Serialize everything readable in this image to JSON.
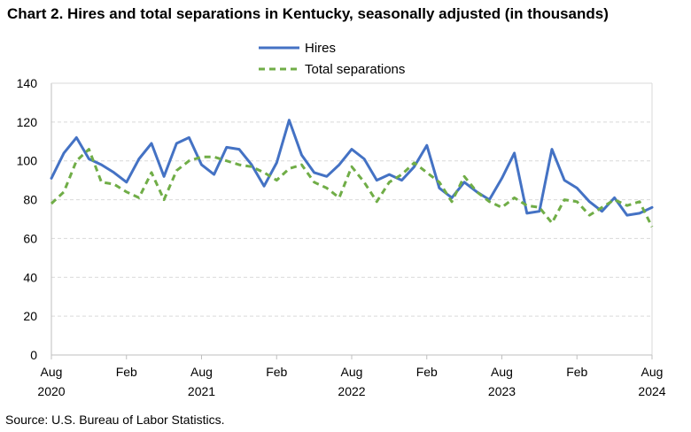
{
  "title": "Chart 2. Hires and total separations in Kentucky, seasonally adjusted (in thousands)",
  "source": "Source: U.S. Bureau of Labor Statistics.",
  "colors": {
    "hires": "#4472C4",
    "separations": "#70AD47",
    "grid": "#d9d9d9"
  },
  "chart_data": {
    "type": "line",
    "title": "Chart 2. Hires and total separations in Kentucky, seasonally adjusted (in thousands)",
    "xlabel": "",
    "ylabel": "",
    "ylim": [
      0,
      140
    ],
    "yticks": [
      0,
      20,
      40,
      60,
      80,
      100,
      120,
      140
    ],
    "grid": true,
    "legend_position": "top-center",
    "x_start": "2020-08",
    "x_end": "2024-08",
    "x_ticks": [
      {
        "month": "Aug",
        "year": "2020",
        "index": 0
      },
      {
        "month": "Feb",
        "year": "",
        "index": 6
      },
      {
        "month": "Aug",
        "year": "2021",
        "index": 12
      },
      {
        "month": "Feb",
        "year": "",
        "index": 18
      },
      {
        "month": "Aug",
        "year": "2022",
        "index": 24
      },
      {
        "month": "Feb",
        "year": "",
        "index": 30
      },
      {
        "month": "Aug",
        "year": "2023",
        "index": 36
      },
      {
        "month": "Feb",
        "year": "",
        "index": 42
      },
      {
        "month": "Aug",
        "year": "2024",
        "index": 48
      }
    ],
    "series": [
      {
        "name": "Hires",
        "style": "solid",
        "values": [
          91,
          104,
          112,
          101,
          98,
          94,
          89,
          101,
          109,
          92,
          109,
          112,
          98,
          93,
          107,
          106,
          98,
          87,
          99,
          121,
          103,
          94,
          92,
          98,
          106,
          101,
          90,
          93,
          90,
          97,
          108,
          86,
          81,
          89,
          84,
          80,
          91,
          104,
          73,
          74,
          106,
          90,
          86,
          79,
          74,
          81,
          72,
          73,
          76
        ]
      },
      {
        "name": "Total separations",
        "style": "dashed",
        "values": [
          78,
          84,
          100,
          106,
          89,
          88,
          84,
          81,
          94,
          80,
          95,
          100,
          102,
          102,
          100,
          98,
          97,
          94,
          90,
          96,
          98,
          89,
          86,
          81,
          97,
          89,
          79,
          89,
          93,
          99,
          94,
          89,
          79,
          92,
          84,
          79,
          76,
          81,
          77,
          76,
          68,
          80,
          79,
          72,
          76,
          80,
          77,
          79,
          66
        ]
      }
    ]
  }
}
